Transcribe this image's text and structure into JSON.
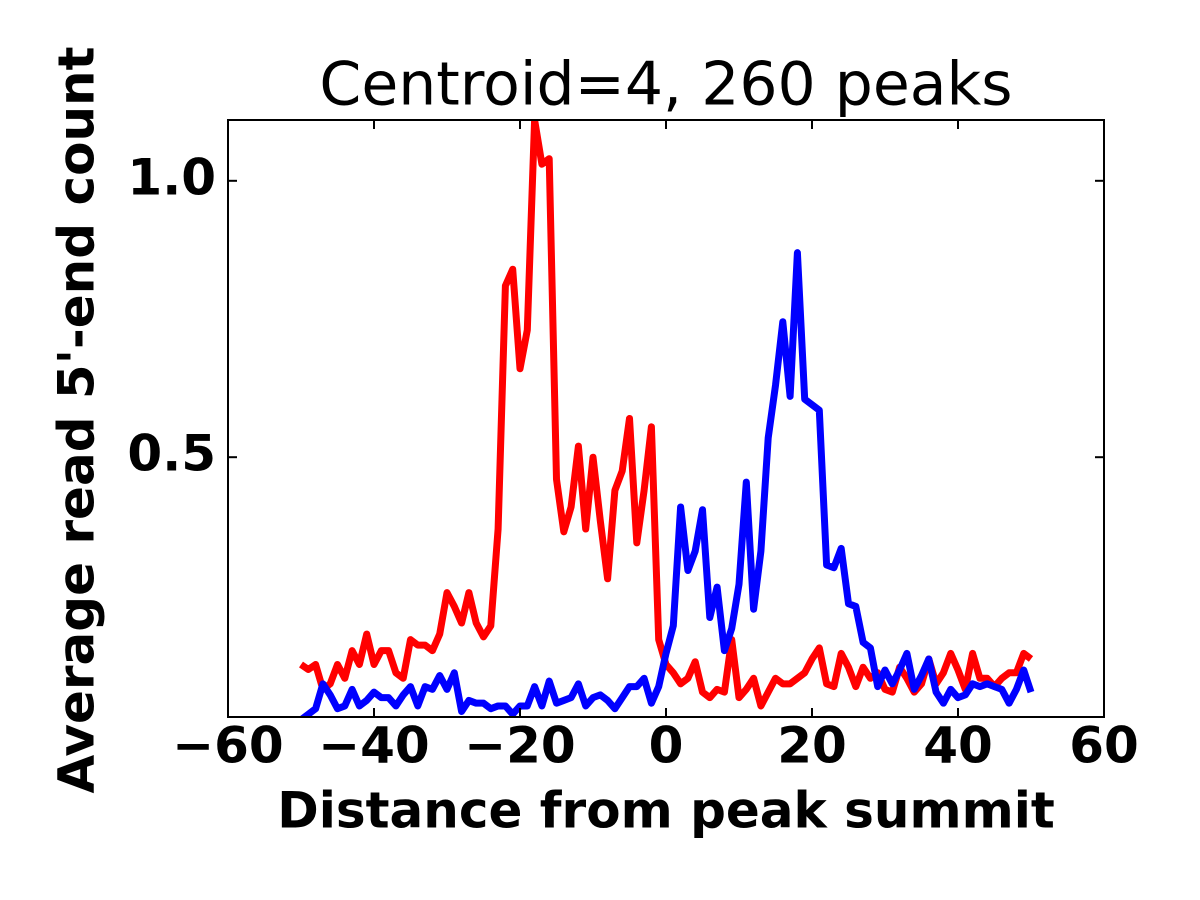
{
  "chart_data": {
    "type": "line",
    "title": "Centroid=4, 260 peaks",
    "xlabel": "Distance from peak summit",
    "ylabel": "Average read 5'-end count",
    "x": [
      -50,
      -49,
      -48,
      -47,
      -46,
      -45,
      -44,
      -43,
      -42,
      -41,
      -40,
      -39,
      -38,
      -37,
      -36,
      -35,
      -34,
      -33,
      -32,
      -31,
      -30,
      -29,
      -28,
      -27,
      -26,
      -25,
      -24,
      -23,
      -22,
      -21,
      -20,
      -19,
      -18,
      -17,
      -16,
      -15,
      -14,
      -13,
      -12,
      -11,
      -10,
      -9,
      -8,
      -7,
      -6,
      -5,
      -4,
      -3,
      -2,
      -1,
      0,
      1,
      2,
      3,
      4,
      5,
      6,
      7,
      8,
      9,
      10,
      11,
      12,
      13,
      14,
      15,
      16,
      17,
      18,
      19,
      20,
      21,
      22,
      23,
      24,
      25,
      26,
      27,
      28,
      29,
      30,
      31,
      32,
      33,
      34,
      35,
      36,
      37,
      38,
      39,
      40,
      41,
      42,
      43,
      44,
      45,
      46,
      47,
      48,
      49,
      50
    ],
    "series": [
      {
        "color": "#ff0000",
        "values": [
          0.125,
          0.116,
          0.125,
          0.08,
          0.09,
          0.125,
          0.1,
          0.15,
          0.125,
          0.18,
          0.125,
          0.15,
          0.15,
          0.11,
          0.1,
          0.17,
          0.16,
          0.16,
          0.15,
          0.18,
          0.255,
          0.23,
          0.2,
          0.255,
          0.2,
          0.175,
          0.195,
          0.37,
          0.81,
          0.84,
          0.66,
          0.73,
          1.11,
          1.03,
          1.04,
          0.46,
          0.365,
          0.41,
          0.52,
          0.37,
          0.5,
          0.385,
          0.28,
          0.44,
          0.475,
          0.57,
          0.345,
          0.44,
          0.555,
          0.17,
          0.125,
          0.11,
          0.09,
          0.1,
          0.13,
          0.075,
          0.065,
          0.08,
          0.075,
          0.17,
          0.065,
          0.08,
          0.1,
          0.05,
          0.075,
          0.1,
          0.09,
          0.09,
          0.1,
          0.11,
          0.135,
          0.155,
          0.09,
          0.085,
          0.145,
          0.12,
          0.085,
          0.12,
          0.1,
          0.11,
          0.08,
          0.075,
          0.12,
          0.1,
          0.075,
          0.09,
          0.135,
          0.09,
          0.11,
          0.145,
          0.115,
          0.08,
          0.145,
          0.1,
          0.1,
          0.085,
          0.1,
          0.11,
          0.11,
          0.145,
          0.135
        ]
      },
      {
        "color": "#0000ff",
        "values": [
          0.025,
          0.035,
          0.045,
          0.09,
          0.07,
          0.045,
          0.05,
          0.08,
          0.05,
          0.06,
          0.075,
          0.065,
          0.065,
          0.05,
          0.07,
          0.085,
          0.05,
          0.085,
          0.08,
          0.105,
          0.08,
          0.11,
          0.04,
          0.06,
          0.055,
          0.055,
          0.045,
          0.05,
          0.05,
          0.035,
          0.05,
          0.05,
          0.085,
          0.05,
          0.095,
          0.055,
          0.06,
          0.065,
          0.09,
          0.05,
          0.065,
          0.07,
          0.06,
          0.045,
          0.065,
          0.085,
          0.085,
          0.1,
          0.055,
          0.085,
          0.145,
          0.195,
          0.41,
          0.295,
          0.33,
          0.405,
          0.21,
          0.265,
          0.15,
          0.19,
          0.27,
          0.455,
          0.225,
          0.33,
          0.535,
          0.63,
          0.745,
          0.61,
          0.87,
          0.605,
          0.595,
          0.585,
          0.305,
          0.3,
          0.335,
          0.235,
          0.23,
          0.165,
          0.155,
          0.085,
          0.115,
          0.09,
          0.115,
          0.145,
          0.08,
          0.105,
          0.135,
          0.075,
          0.055,
          0.08,
          0.065,
          0.07,
          0.09,
          0.085,
          0.09,
          0.085,
          0.08,
          0.055,
          0.08,
          0.115,
          0.075
        ]
      }
    ],
    "xlim": [
      -60,
      60
    ],
    "xticks": [
      {
        "value": -60,
        "label": "−60"
      },
      {
        "value": -40,
        "label": "−40"
      },
      {
        "value": -20,
        "label": "−20"
      },
      0,
      20,
      40,
      60
    ],
    "ylim": [
      0.03,
      1.11
    ],
    "yticks": [
      0.5,
      {
        "value": 1,
        "label": "1.0"
      }
    ],
    "grid": false
  }
}
